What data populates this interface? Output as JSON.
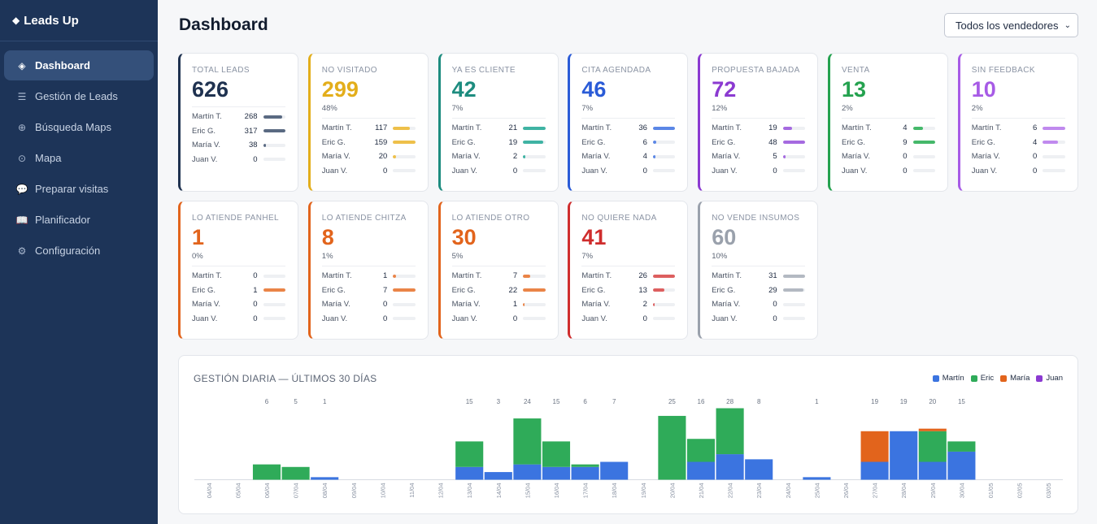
{
  "sidebar": {
    "logo_icon": "diamond-icon",
    "logo": "Leads Up",
    "items": [
      {
        "label": "Dashboard",
        "icon": "diamond-icon",
        "glyph": "◈",
        "active": true
      },
      {
        "label": "Gestión de Leads",
        "icon": "list-icon",
        "glyph": "☰",
        "active": false
      },
      {
        "label": "Búsqueda Maps",
        "icon": "globe-icon",
        "glyph": "⊕",
        "active": false
      },
      {
        "label": "Mapa",
        "icon": "pin-icon",
        "glyph": "⊙",
        "active": false
      },
      {
        "label": "Preparar visitas",
        "icon": "chat-icon",
        "glyph": "💬",
        "active": false
      },
      {
        "label": "Planificador",
        "icon": "book-icon",
        "glyph": "📖",
        "active": false
      },
      {
        "label": "Configuración",
        "icon": "gear-icon",
        "glyph": "⚙",
        "active": false
      }
    ]
  },
  "header": {
    "title": "Dashboard",
    "seller_select": "Todos los vendedores"
  },
  "sellers": [
    "Martín T.",
    "Eric G.",
    "María V.",
    "Juan V."
  ],
  "cards": [
    {
      "label": "TOTAL LEADS",
      "value": "626",
      "pct": "",
      "color": "#1f3250",
      "bar_color": "#5a6a82",
      "counts": [
        268,
        317,
        38,
        0
      ]
    },
    {
      "label": "NO VISITADO",
      "value": "299",
      "pct": "48%",
      "color": "#e3ae1b",
      "bar_color": "#eec04a",
      "counts": [
        117,
        159,
        20,
        0
      ]
    },
    {
      "label": "YA ES CLIENTE",
      "value": "42",
      "pct": "7%",
      "color": "#1d8c7f",
      "bar_color": "#3fb3a3",
      "counts": [
        21,
        19,
        2,
        0
      ]
    },
    {
      "label": "CITA AGENDADA",
      "value": "46",
      "pct": "7%",
      "color": "#2a5bd7",
      "bar_color": "#5b87e6",
      "counts": [
        36,
        6,
        4,
        0
      ]
    },
    {
      "label": "PROPUESTA BAJADA",
      "value": "72",
      "pct": "12%",
      "color": "#8b3ad1",
      "bar_color": "#a56ae0",
      "counts": [
        19,
        48,
        5,
        0
      ]
    },
    {
      "label": "VENTA",
      "value": "13",
      "pct": "2%",
      "color": "#24a24f",
      "bar_color": "#45b86a",
      "counts": [
        4,
        9,
        0,
        0
      ]
    },
    {
      "label": "SIN FEEDBACK",
      "value": "10",
      "pct": "2%",
      "color": "#a75be6",
      "bar_color": "#c08aee",
      "counts": [
        6,
        4,
        0,
        0
      ]
    },
    {
      "label": "LO ATIENDE PANHEL",
      "value": "1",
      "pct": "0%",
      "color": "#e2641c",
      "bar_color": "#ea8447",
      "counts": [
        0,
        1,
        0,
        0
      ]
    },
    {
      "label": "LO ATIENDE CHITZA",
      "value": "8",
      "pct": "1%",
      "color": "#e2641c",
      "bar_color": "#ea8447",
      "counts": [
        1,
        7,
        0,
        0
      ]
    },
    {
      "label": "LO ATIENDE OTRO",
      "value": "30",
      "pct": "5%",
      "color": "#e2641c",
      "bar_color": "#ea8447",
      "counts": [
        7,
        22,
        1,
        0
      ]
    },
    {
      "label": "NO QUIERE NADA",
      "value": "41",
      "pct": "7%",
      "color": "#cf2d2d",
      "bar_color": "#dd5f5f",
      "counts": [
        26,
        13,
        2,
        0
      ]
    },
    {
      "label": "NO VENDE INSUMOS",
      "value": "60",
      "pct": "10%",
      "color": "#9aa1ac",
      "bar_color": "#b3b9c2",
      "counts": [
        31,
        29,
        0,
        0
      ]
    }
  ],
  "chart_data": {
    "type": "bar",
    "stacked": true,
    "title": "GESTIÓN DIARIA — ÚLTIMOS 30 DÍAS",
    "legend_position": "top-right",
    "categories": [
      "04/04",
      "05/04",
      "06/04",
      "07/04",
      "08/04",
      "09/04",
      "10/04",
      "11/04",
      "12/04",
      "13/04",
      "14/04",
      "15/04",
      "16/04",
      "17/04",
      "18/04",
      "19/04",
      "20/04",
      "21/04",
      "22/04",
      "23/04",
      "24/04",
      "25/04",
      "26/04",
      "27/04",
      "28/04",
      "29/04",
      "30/04",
      "01/05",
      "02/05",
      "03/05"
    ],
    "totals": [
      "",
      "",
      "6",
      "5",
      "1",
      "",
      "",
      "",
      "",
      "15",
      "3",
      "24",
      "15",
      "6",
      "7",
      "",
      "25",
      "16",
      "28",
      "8",
      "",
      "1",
      "",
      "19",
      "19",
      "20",
      "15",
      "",
      "",
      ""
    ],
    "ylim": [
      0,
      28
    ],
    "series": [
      {
        "name": "Martín",
        "color": "#3b74e0",
        "values": [
          0,
          0,
          0,
          0,
          1,
          0,
          0,
          0,
          0,
          5,
          3,
          6,
          5,
          5,
          7,
          0,
          0,
          7,
          10,
          8,
          0,
          1,
          0,
          7,
          19,
          7,
          11,
          0,
          0,
          0
        ]
      },
      {
        "name": "Eric",
        "color": "#2fab59",
        "values": [
          0,
          0,
          6,
          5,
          0,
          0,
          0,
          0,
          0,
          10,
          0,
          18,
          10,
          1,
          0,
          0,
          25,
          9,
          18,
          0,
          0,
          0,
          0,
          0,
          0,
          12,
          4,
          0,
          0,
          0
        ]
      },
      {
        "name": "María",
        "color": "#e2641c",
        "values": [
          0,
          0,
          0,
          0,
          0,
          0,
          0,
          0,
          0,
          0,
          0,
          0,
          0,
          0,
          0,
          0,
          0,
          0,
          0,
          0,
          0,
          0,
          0,
          12,
          0,
          1,
          0,
          0,
          0,
          0
        ]
      },
      {
        "name": "Juan",
        "color": "#8b3ad1",
        "values": [
          0,
          0,
          0,
          0,
          0,
          0,
          0,
          0,
          0,
          0,
          0,
          0,
          0,
          0,
          0,
          0,
          0,
          0,
          0,
          0,
          0,
          0,
          0,
          0,
          0,
          0,
          0,
          0,
          0,
          0
        ]
      }
    ]
  }
}
